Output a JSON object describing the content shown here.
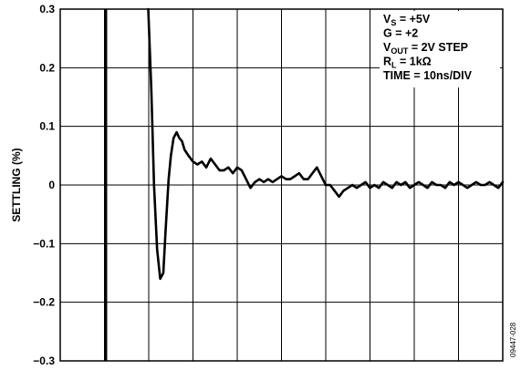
{
  "chart_data": {
    "type": "line",
    "ylabel": "SETTLING (%)",
    "ylim": [
      -0.3,
      0.3
    ],
    "y_ticks": [
      "0.3",
      "0.2",
      "0.1",
      "0",
      "−0.1",
      "−0.2",
      "−0.3"
    ],
    "y_tick_values": [
      0.3,
      0.2,
      0.1,
      0,
      -0.1,
      -0.2,
      -0.3
    ],
    "x_unit": "ns",
    "xlim": [
      0,
      100
    ],
    "x_divisions": 10,
    "grid": true,
    "annotations": [
      {
        "id": "vs",
        "main": "V",
        "sub": "S",
        "rest": " = +5V"
      },
      {
        "id": "g",
        "main": "G = +2",
        "sub": "",
        "rest": ""
      },
      {
        "id": "vout",
        "main": "V",
        "sub": "OUT",
        "rest": " = 2V STEP"
      },
      {
        "id": "rl",
        "main": "R",
        "sub": "L",
        "rest": " = 1kΩ"
      },
      {
        "id": "time",
        "main": "TIME = 10ns/DIV",
        "sub": "",
        "rest": ""
      }
    ],
    "figure_id": "09447-028",
    "input_edge": {
      "x": 10.3,
      "y_from": -0.3,
      "y_to": 0.3
    },
    "series": [
      {
        "x": [
          19.9,
          20.6,
          21.2,
          21.9,
          22.6,
          23.3,
          23.8,
          24.5,
          25.0,
          25.6,
          26.3,
          26.9,
          27.5,
          28.1,
          29.0,
          30.0,
          31.0,
          32.0,
          33.0,
          34.0,
          35.0,
          36.0,
          37.0,
          38.0,
          39.0,
          40.0,
          41.0,
          42.0,
          43.0,
          44.0,
          45.0,
          46.0,
          47.0,
          48.0,
          49.0,
          50.0,
          51.0,
          52.0,
          53.0,
          54.0,
          55.0,
          56.0,
          57.0,
          58.0,
          59.0,
          60.0,
          61.0,
          62.0,
          63.0,
          64.0,
          65.0,
          66.0,
          67.0,
          68.0,
          69.0,
          70.0,
          71.0,
          72.0,
          73.0,
          74.0,
          75.0,
          76.0,
          77.0,
          78.0,
          79.0,
          80.0,
          81.0,
          82.0,
          83.0,
          84.0,
          85.0,
          86.0,
          87.0,
          88.0,
          89.0,
          90.0,
          91.0,
          92.0,
          93.0,
          94.0,
          95.0,
          96.0,
          97.0,
          98.0,
          99.0,
          100.0
        ],
        "values": [
          0.3,
          0.16,
          0.0,
          -0.11,
          -0.16,
          -0.15,
          -0.08,
          0.01,
          0.05,
          0.08,
          0.09,
          0.08,
          0.075,
          0.06,
          0.05,
          0.04,
          0.035,
          0.04,
          0.03,
          0.045,
          0.035,
          0.025,
          0.025,
          0.03,
          0.02,
          0.03,
          0.025,
          0.01,
          -0.005,
          0.005,
          0.01,
          0.005,
          0.01,
          0.005,
          0.01,
          0.015,
          0.01,
          0.01,
          0.015,
          0.02,
          0.01,
          0.01,
          0.02,
          0.03,
          0.015,
          0.0,
          0.0,
          -0.01,
          -0.02,
          -0.01,
          -0.005,
          0.0,
          -0.005,
          0.0,
          0.005,
          -0.005,
          0.0,
          -0.005,
          0.005,
          0.0,
          -0.005,
          0.005,
          0.0,
          0.005,
          -0.005,
          0.0,
          0.005,
          0.0,
          -0.005,
          0.005,
          0.0,
          0.0,
          -0.005,
          0.005,
          0.0,
          0.005,
          0.0,
          -0.005,
          0.0,
          0.005,
          0.0,
          0.0,
          0.005,
          0.0,
          -0.005,
          0.005
        ]
      }
    ]
  }
}
